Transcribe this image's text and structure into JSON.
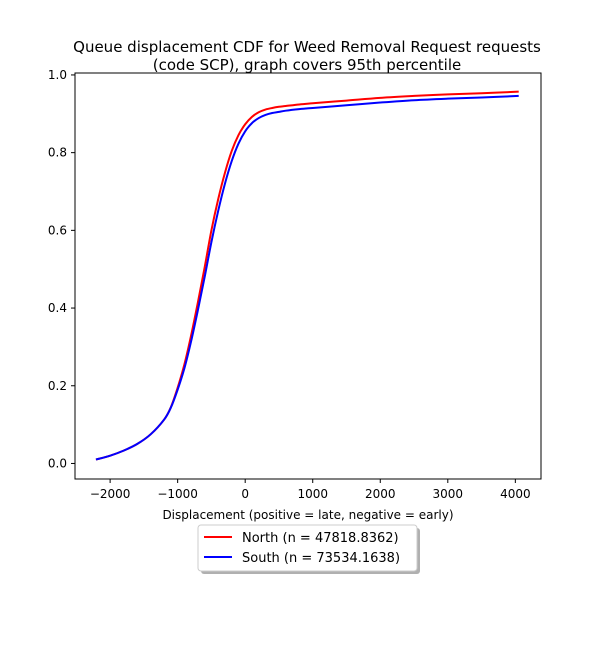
{
  "chart_data": {
    "type": "line",
    "title_line1": "Queue displacement CDF for Weed Removal Request  requests",
    "title_line2": "(code SCP), graph covers 95th percentile",
    "xlabel": "Displacement (positive = late, negative = early)",
    "ylabel": "",
    "xlim": [
      -2520,
      4380
    ],
    "ylim": [
      -0.04,
      1.005
    ],
    "xticks": [
      -2000,
      -1000,
      0,
      1000,
      2000,
      3000,
      4000
    ],
    "xtick_labels": [
      "−2000",
      "−1000",
      "0",
      "1000",
      "2000",
      "3000",
      "4000"
    ],
    "yticks": [
      0.0,
      0.2,
      0.4,
      0.6,
      0.8,
      1.0
    ],
    "ytick_labels": [
      "0.0",
      "0.2",
      "0.4",
      "0.6",
      "0.8",
      "1.0"
    ],
    "grid": false,
    "legend_position": "below",
    "series": [
      {
        "name": "North (n = 47818.8362)",
        "color": "#ff0000",
        "x": [
          -2210,
          -2000,
          -1800,
          -1600,
          -1400,
          -1200,
          -1100,
          -1000,
          -900,
          -800,
          -700,
          -600,
          -500,
          -400,
          -300,
          -200,
          -100,
          0,
          100,
          200,
          300,
          400,
          500,
          600,
          800,
          1000,
          1500,
          2000,
          2500,
          3000,
          3500,
          4050
        ],
        "y": [
          0.01,
          0.02,
          0.033,
          0.05,
          0.075,
          0.113,
          0.145,
          0.195,
          0.255,
          0.33,
          0.415,
          0.505,
          0.6,
          0.68,
          0.748,
          0.804,
          0.845,
          0.873,
          0.892,
          0.904,
          0.911,
          0.915,
          0.918,
          0.92,
          0.924,
          0.927,
          0.934,
          0.941,
          0.946,
          0.95,
          0.953,
          0.957
        ]
      },
      {
        "name": "South (n = 73534.1638)",
        "color": "#0000ff",
        "x": [
          -2210,
          -2000,
          -1800,
          -1600,
          -1400,
          -1200,
          -1100,
          -1000,
          -900,
          -800,
          -700,
          -600,
          -500,
          -400,
          -300,
          -200,
          -100,
          0,
          100,
          200,
          300,
          400,
          500,
          600,
          800,
          1000,
          1500,
          2000,
          2500,
          3000,
          3500,
          4050
        ],
        "y": [
          0.01,
          0.02,
          0.033,
          0.05,
          0.075,
          0.113,
          0.144,
          0.19,
          0.245,
          0.315,
          0.395,
          0.48,
          0.57,
          0.65,
          0.72,
          0.778,
          0.823,
          0.855,
          0.876,
          0.889,
          0.897,
          0.902,
          0.905,
          0.908,
          0.912,
          0.915,
          0.922,
          0.929,
          0.935,
          0.939,
          0.942,
          0.946
        ]
      }
    ]
  }
}
